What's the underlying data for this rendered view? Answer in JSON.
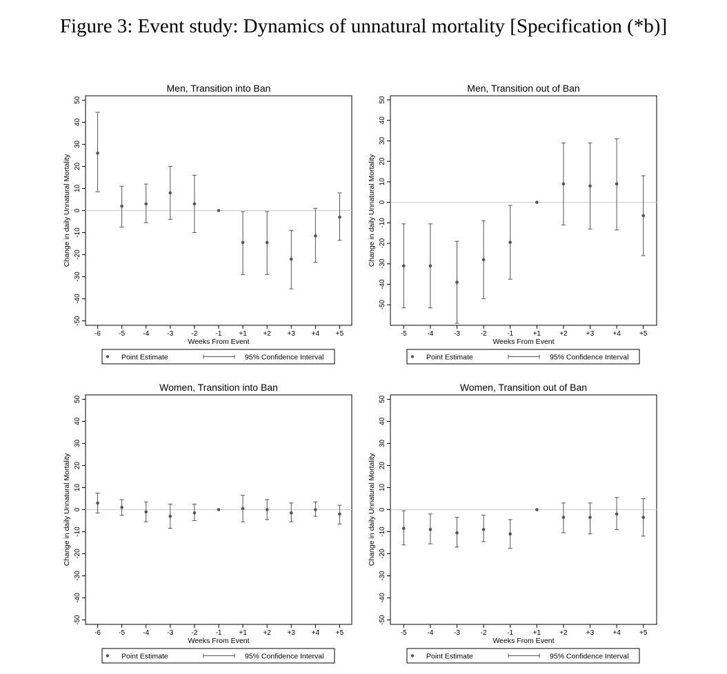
{
  "figure": {
    "title": "Figure 3: Event study: Dynamics of unnatural mortality [Specification (*b)]"
  },
  "chart_data": [
    {
      "type": "scatter",
      "title": "Men, Transition into Ban",
      "xlabel": "Weeks From Event",
      "ylabel": "Change in daily Unnatural Mortality",
      "categories": [
        "-6",
        "-5",
        "-4",
        "-3",
        "-2",
        "-1",
        "+1",
        "+2",
        "+3",
        "+4",
        "+5"
      ],
      "ylim": [
        -52,
        52
      ],
      "yticks": [
        50,
        40,
        30,
        20,
        10,
        0,
        -10,
        -20,
        -30,
        -40,
        -50
      ],
      "grid": false,
      "reference_line": 0,
      "series": [
        {
          "name": "Point Estimate",
          "values": [
            26,
            2,
            3,
            8,
            3,
            0,
            -14.5,
            -14.5,
            -22,
            -11.5,
            -3
          ]
        },
        {
          "name": "95% Confidence Interval",
          "lower": [
            8.5,
            -7.5,
            -5.5,
            -4,
            -10,
            0,
            -29,
            -29,
            -35.5,
            -23.5,
            -13.5
          ],
          "upper": [
            44.5,
            11,
            12,
            20,
            16,
            0,
            -0.5,
            -0.5,
            -9,
            1,
            8
          ]
        }
      ],
      "legend": {
        "placement": "bottom",
        "point_label": "Point Estimate",
        "ci_label": "95% Confidence Interval"
      }
    },
    {
      "type": "scatter",
      "title": "Men, Transition out of Ban",
      "xlabel": "Weeks From Event",
      "ylabel": "Change in daily Unnatural Mortality",
      "categories": [
        "-5",
        "-4",
        "-3",
        "-2",
        "-1",
        "+1",
        "+2",
        "+3",
        "+4",
        "+5"
      ],
      "ylim": [
        -60,
        52
      ],
      "yticks": [
        50,
        40,
        30,
        20,
        10,
        0,
        -10,
        -20,
        -30,
        -40,
        -50
      ],
      "grid": false,
      "reference_line": 0,
      "series": [
        {
          "name": "Point Estimate",
          "values": [
            -31,
            -31,
            -39,
            -28,
            -19.5,
            0,
            9,
            8,
            9,
            -6.5
          ]
        },
        {
          "name": "95% Confidence Interval",
          "lower": [
            -51.5,
            -51.5,
            -59,
            -47,
            -37.5,
            0,
            -11,
            -13,
            -13.5,
            -26
          ],
          "upper": [
            -10.5,
            -10.5,
            -19,
            -9,
            -1.5,
            0,
            29,
            29,
            31,
            13
          ]
        }
      ],
      "legend": {
        "placement": "bottom",
        "point_label": "Point Estimate",
        "ci_label": "95% Confidence Interval"
      }
    },
    {
      "type": "scatter",
      "title": "Women, Transition into Ban",
      "xlabel": "Weeks From Event",
      "ylabel": "Change in daily Unnatural Mortality",
      "categories": [
        "-6",
        "-5",
        "-4",
        "-3",
        "-2",
        "-1",
        "+1",
        "+2",
        "+3",
        "+4",
        "+5"
      ],
      "ylim": [
        -52,
        52
      ],
      "yticks": [
        50,
        40,
        30,
        20,
        10,
        0,
        -10,
        -20,
        -30,
        -40,
        -50
      ],
      "grid": false,
      "reference_line": 0,
      "series": [
        {
          "name": "Point Estimate",
          "values": [
            3,
            1,
            -1,
            -3,
            -1.5,
            0,
            0.5,
            0,
            -1.5,
            0,
            -2
          ]
        },
        {
          "name": "95% Confidence Interval",
          "lower": [
            -1.5,
            -2.5,
            -5.5,
            -8.5,
            -5,
            0,
            -5.5,
            -4.5,
            -5.5,
            -3,
            -6.5
          ],
          "upper": [
            7.5,
            4.5,
            3.5,
            2.5,
            2.5,
            0,
            6.5,
            4.5,
            3,
            3.5,
            2
          ]
        }
      ],
      "legend": {
        "placement": "bottom",
        "point_label": "Point Estimate",
        "ci_label": "95% Confidence Interval"
      }
    },
    {
      "type": "scatter",
      "title": "Women, Transition out of Ban",
      "xlabel": "Weeks From Event",
      "ylabel": "Change in daily Unnatural Mortality",
      "categories": [
        "-5",
        "-4",
        "-3",
        "-2",
        "-1",
        "+1",
        "+2",
        "+3",
        "+4",
        "+5"
      ],
      "ylim": [
        -52,
        52
      ],
      "yticks": [
        50,
        40,
        30,
        20,
        10,
        0,
        -10,
        -20,
        -30,
        -40,
        -50
      ],
      "grid": false,
      "reference_line": 0,
      "series": [
        {
          "name": "Point Estimate",
          "values": [
            -8.5,
            -9,
            -10.5,
            -9,
            -11,
            0,
            -3.5,
            -3.5,
            -2,
            -3.5
          ]
        },
        {
          "name": "95% Confidence Interval",
          "lower": [
            -16,
            -15.5,
            -17,
            -14.5,
            -17.5,
            0,
            -10.5,
            -11,
            -9,
            -12
          ],
          "upper": [
            -0.5,
            -2,
            -3.5,
            -2.5,
            -4.5,
            0,
            3,
            3,
            5.5,
            5
          ]
        }
      ],
      "legend": {
        "placement": "bottom",
        "point_label": "Point Estimate",
        "ci_label": "95% Confidence Interval"
      }
    }
  ],
  "colors": {
    "marker": "#555555",
    "ci_line": "#555555",
    "reference_line": "#cccccc",
    "axis": "#000000"
  }
}
